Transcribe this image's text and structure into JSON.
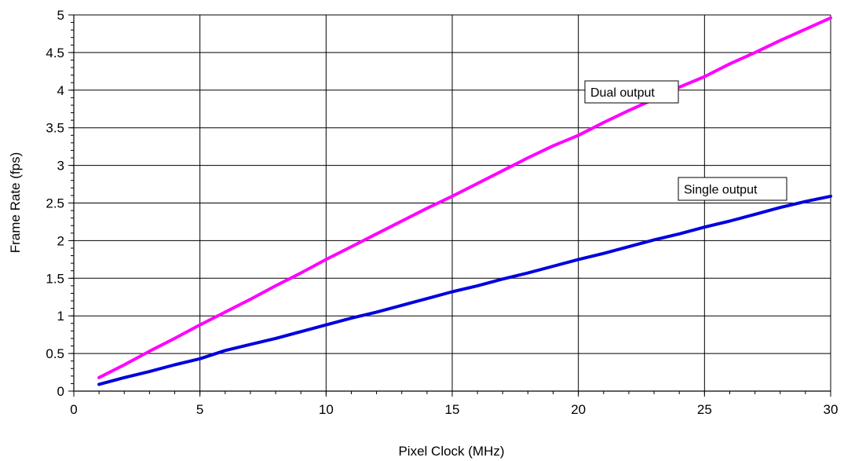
{
  "chart_data": {
    "type": "line",
    "title": "",
    "xlabel": "Pixel Clock (MHz)",
    "ylabel": "Frame Rate (fps)",
    "xlim": [
      0,
      30
    ],
    "ylim": [
      0,
      5
    ],
    "x_ticks": [
      0,
      5,
      10,
      15,
      20,
      25,
      30
    ],
    "y_ticks": [
      0,
      0.5,
      1,
      1.5,
      2,
      2.5,
      3,
      3.5,
      4,
      4.5,
      5
    ],
    "x_tick_labels": [
      "0",
      "5",
      "10",
      "15",
      "20",
      "25",
      "30"
    ],
    "y_tick_labels": [
      "0",
      "0.5",
      "1",
      "1.5",
      "2",
      "2.5",
      "3",
      "3.5",
      "4",
      "4.5",
      "5"
    ],
    "grid": true,
    "legend": "none",
    "series": [
      {
        "name": "Dual output",
        "color": "#ff00ff",
        "x": [
          1,
          2,
          3,
          4,
          5,
          6,
          7,
          8,
          9,
          10,
          11,
          12,
          13,
          14,
          15,
          16,
          17,
          18,
          19,
          20,
          21,
          22,
          23,
          24,
          25,
          26,
          27,
          28,
          29,
          30
        ],
        "y": [
          0.18,
          0.35,
          0.53,
          0.7,
          0.88,
          1.05,
          1.22,
          1.4,
          1.57,
          1.75,
          1.92,
          2.09,
          2.26,
          2.43,
          2.59,
          2.76,
          2.93,
          3.1,
          3.26,
          3.4,
          3.57,
          3.73,
          3.88,
          4.04,
          4.18,
          4.35,
          4.5,
          4.66,
          4.81,
          4.96
        ]
      },
      {
        "name": "Single output",
        "color": "#0000dd",
        "x": [
          1,
          2,
          3,
          4,
          5,
          6,
          7,
          8,
          9,
          10,
          11,
          12,
          13,
          14,
          15,
          16,
          17,
          18,
          19,
          20,
          21,
          22,
          23,
          24,
          25,
          26,
          27,
          28,
          29,
          30
        ],
        "y": [
          0.09,
          0.18,
          0.26,
          0.35,
          0.43,
          0.54,
          0.62,
          0.7,
          0.79,
          0.88,
          0.97,
          1.05,
          1.14,
          1.23,
          1.32,
          1.4,
          1.49,
          1.57,
          1.66,
          1.75,
          1.83,
          1.92,
          2.01,
          2.09,
          2.18,
          2.26,
          2.35,
          2.44,
          2.52,
          2.59
        ]
      }
    ],
    "annotations": [
      {
        "text": "Dual output",
        "series": "Dual output"
      },
      {
        "text": "Single output",
        "series": "Single output"
      }
    ]
  }
}
